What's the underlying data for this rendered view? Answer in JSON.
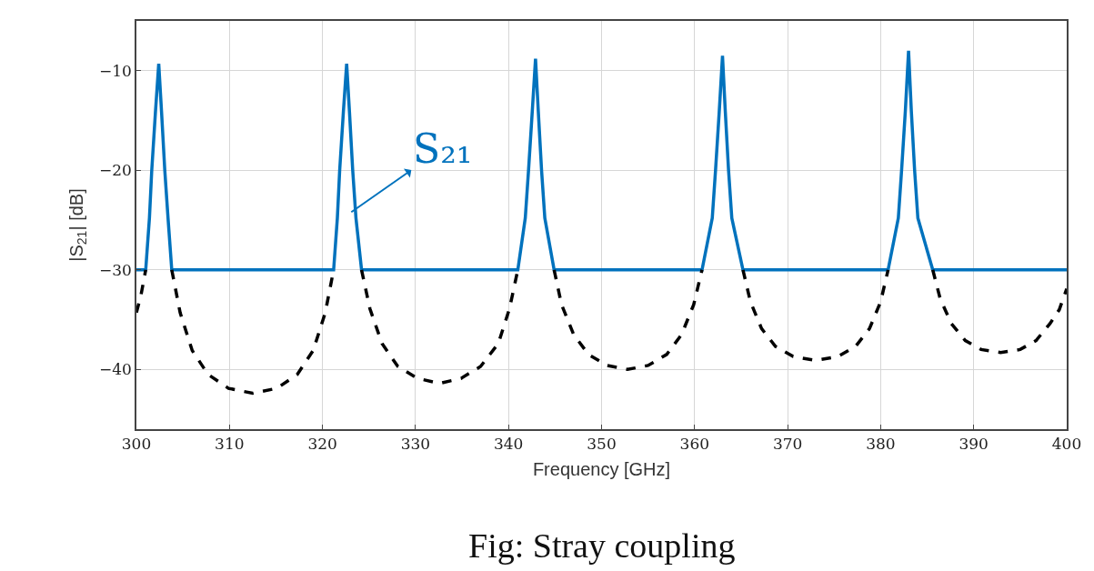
{
  "chart_data": {
    "type": "line",
    "xlabel": "Frequency [GHz]",
    "ylabel": "|S$_{21}$| [dB]",
    "xlim": [
      300,
      400
    ],
    "xticks": [
      300,
      310,
      320,
      330,
      340,
      350,
      360,
      370,
      380,
      390,
      400
    ],
    "ylim": [
      -46,
      -5
    ],
    "yticks": [
      {
        "value": -10,
        "label": "−10"
      },
      {
        "value": -20,
        "label": "−20"
      },
      {
        "value": -30,
        "label": "−30"
      },
      {
        "value": -40,
        "label": "−40"
      }
    ],
    "grid": true,
    "marker": "none",
    "series": [
      {
        "color": "#0072bd",
        "line_style": "solid",
        "x": [
          300,
          301.0,
          301.4,
          301.65,
          302.05,
          302.4,
          302.7,
          303.05,
          303.4,
          303.8,
          321.2,
          321.6,
          321.85,
          322.25,
          322.6,
          322.9,
          323.25,
          323.6,
          324.2,
          341.0,
          341.8,
          342.15,
          342.55,
          342.9,
          343.2,
          343.55,
          343.9,
          344.9,
          360.8,
          361.9,
          362.25,
          362.65,
          363.0,
          363.3,
          363.65,
          364.0,
          365.2,
          380.8,
          381.9,
          382.25,
          382.65,
          383.0,
          383.3,
          383.65,
          384.0,
          385.6,
          400
        ],
        "values": [
          -30,
          -30,
          -24.8,
          -20,
          -14.1,
          -9.3,
          -14.1,
          -20,
          -24.8,
          -30,
          -30,
          -24.8,
          -20,
          -14.1,
          -9.3,
          -14.1,
          -20,
          -24.8,
          -30,
          -30,
          -24.8,
          -20,
          -14.1,
          -8.8,
          -14.1,
          -20,
          -24.8,
          -30,
          -30,
          -24.8,
          -20,
          -14.1,
          -8.5,
          -14.1,
          -20,
          -24.8,
          -30,
          -30,
          -24.8,
          -20,
          -14.1,
          -8.0,
          -14.1,
          -20,
          -24.8,
          -30,
          -30
        ]
      },
      {
        "color": "#000000",
        "line_style": "dashed",
        "x": [
          300,
          300.5,
          301.0,
          null,
          303.8,
          304.7,
          306.0,
          307.7,
          309.9,
          312.5,
          315.1,
          317.3,
          319.0,
          320.3,
          321.2,
          null,
          324.2,
          325.1,
          326.4,
          328.1,
          330.2,
          332.6,
          334.9,
          337.0,
          338.9,
          340.1,
          341.0,
          null,
          344.9,
          345.7,
          347.0,
          348.6,
          350.6,
          352.8,
          355.0,
          357.0,
          358.6,
          359.9,
          360.8,
          null,
          365.2,
          366.0,
          367.2,
          368.7,
          370.6,
          373.0,
          375.4,
          377.3,
          378.8,
          380.0,
          380.8,
          null,
          385.6,
          386.4,
          387.6,
          389.1,
          390.8,
          392.9,
          395.0,
          396.7,
          398.2,
          399.2,
          400
        ],
        "values": [
          -34.3,
          -32.5,
          -30,
          null,
          -30,
          -34.3,
          -38.1,
          -40.5,
          -41.9,
          -42.4,
          -41.9,
          -40.5,
          -38.1,
          -34.3,
          -30,
          null,
          -30,
          -33.9,
          -37.4,
          -39.7,
          -40.9,
          -41.4,
          -40.9,
          -39.7,
          -37.4,
          -33.9,
          -30,
          null,
          -30,
          -33.5,
          -36.5,
          -38.5,
          -39.6,
          -40,
          -39.6,
          -38.5,
          -36.5,
          -33.5,
          -30,
          null,
          -30,
          -33.2,
          -35.9,
          -37.7,
          -38.7,
          -39.1,
          -38.7,
          -37.7,
          -35.9,
          -33.2,
          -30,
          null,
          -30,
          -32.9,
          -35.4,
          -37.1,
          -38,
          -38.3,
          -38,
          -37.1,
          -35.4,
          -34,
          -31.9
        ]
      }
    ],
    "annotations": [
      {
        "text": "S₂₁",
        "x": 323.1,
        "y": -24.2
      },
      "Fig: Stray coupling"
    ]
  }
}
